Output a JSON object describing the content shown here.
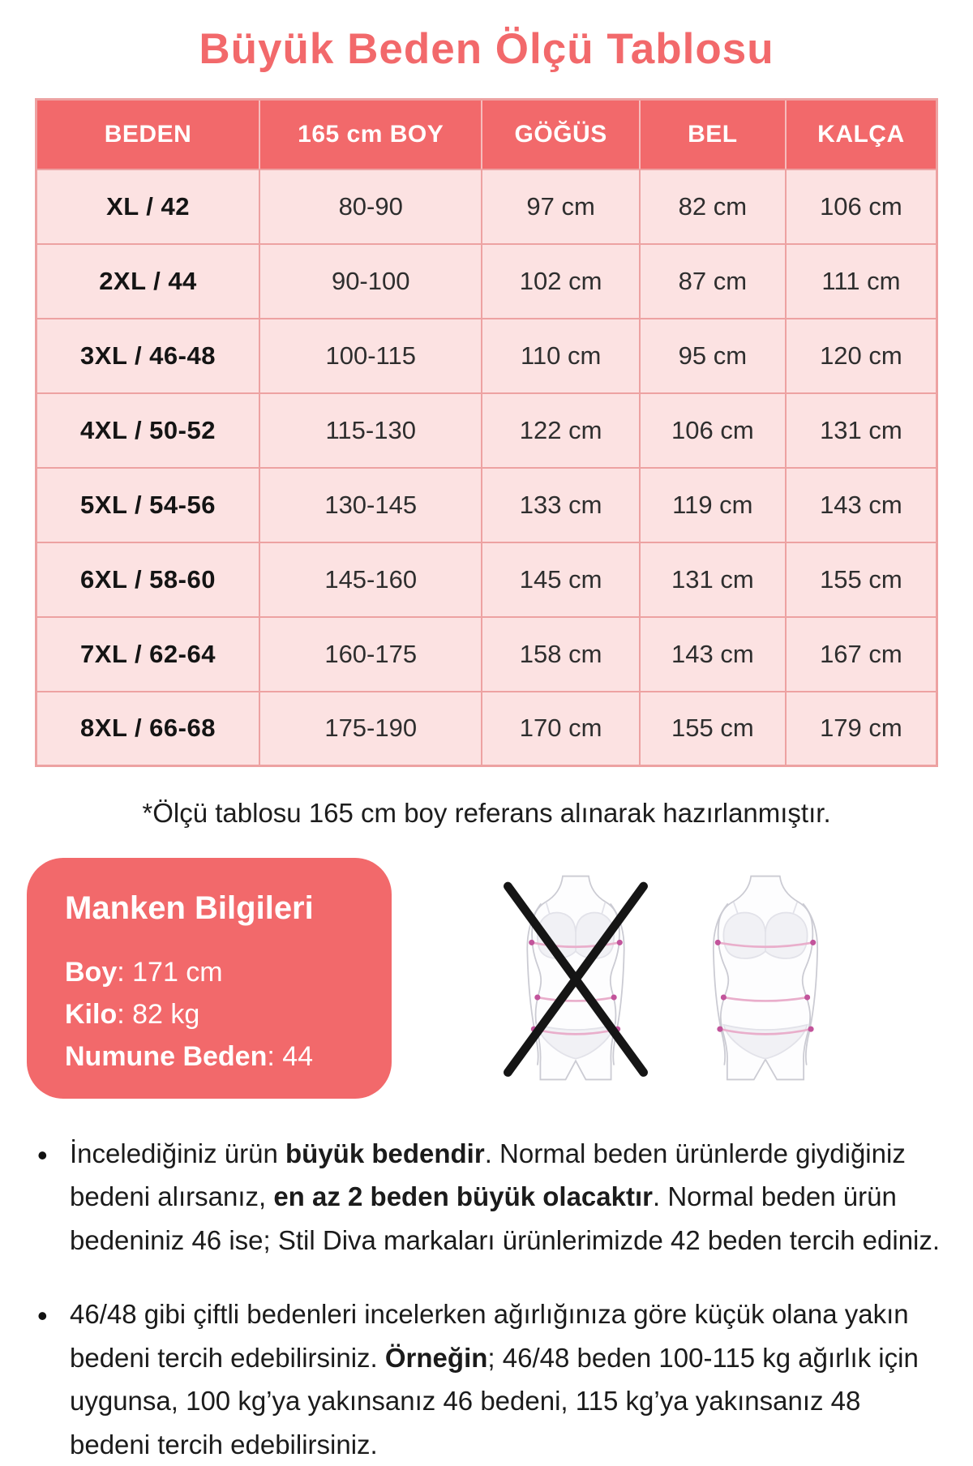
{
  "page": {
    "title": "Büyük Beden Ölçü Tablosu",
    "footnote": "*Ölçü tablosu 165 cm boy referans alınarak hazırlanmıştır."
  },
  "colors": {
    "coral": "#f2696b",
    "row_pink": "#fce2e2",
    "border_pink": "#eda2a2",
    "header_divider": "#f6bcbc",
    "measure_line": "#e9aecb",
    "measure_dot": "#c2549b",
    "cross_black": "#151515"
  },
  "size_table": {
    "headers": [
      "BEDEN",
      "165 cm BOY",
      "GÖĞÜS",
      "BEL",
      "KALÇA"
    ],
    "rows": [
      {
        "size": "XL / 42",
        "weight_range": "80-90",
        "chest": "97 cm",
        "waist": "82 cm",
        "hip": "106 cm"
      },
      {
        "size": "2XL / 44",
        "weight_range": "90-100",
        "chest": "102 cm",
        "waist": "87 cm",
        "hip": "111 cm"
      },
      {
        "size": "3XL / 46-48",
        "weight_range": "100-115",
        "chest": "110 cm",
        "waist": "95 cm",
        "hip": "120 cm"
      },
      {
        "size": "4XL / 50-52",
        "weight_range": "115-130",
        "chest": "122 cm",
        "waist": "106 cm",
        "hip": "131 cm"
      },
      {
        "size": "5XL / 54-56",
        "weight_range": "130-145",
        "chest": "133 cm",
        "waist": "119 cm",
        "hip": "143 cm"
      },
      {
        "size": "6XL / 58-60",
        "weight_range": "145-160",
        "chest": "145 cm",
        "waist": "131 cm",
        "hip": "155 cm"
      },
      {
        "size": "7XL / 62-64",
        "weight_range": "160-175",
        "chest": "158 cm",
        "waist": "143 cm",
        "hip": "167 cm"
      },
      {
        "size": "8XL / 66-68",
        "weight_range": "175-190",
        "chest": "170 cm",
        "waist": "155 cm",
        "hip": "179 cm"
      }
    ]
  },
  "model_info": {
    "title": "Manken Bilgileri",
    "fields": [
      {
        "label": "Boy",
        "value": "171 cm"
      },
      {
        "label": "Kilo",
        "value": "82 kg"
      },
      {
        "label": "Numune Beden",
        "value": "44"
      }
    ]
  },
  "illustrations": {
    "left": "slim-body-crossed-out",
    "right": "plus-size-body-with-measure-lines"
  },
  "notes": [
    {
      "segments": [
        {
          "text": "İncelediğiniz ürün "
        },
        {
          "text": "büyük bedendir",
          "bold": true
        },
        {
          "text": ". Normal beden ürünlerde giydiğiniz bedeni alırsanız, "
        },
        {
          "text": "en az 2 beden büyük olacaktır",
          "bold": true
        },
        {
          "text": ". Normal beden ürün bedeniniz 46 ise; Stil Diva markaları ürünlerimizde 42 beden tercih ediniz."
        }
      ]
    },
    {
      "segments": [
        {
          "text": "46/48 gibi çiftli bedenleri incelerken ağırlığınıza göre küçük olana yakın bedeni tercih edebilirsiniz. "
        },
        {
          "text": "Örneğin",
          "bold": true
        },
        {
          "text": "; 46/48 beden 100-115 kg ağırlık için uygunsa, 100 kg’ya yakınsanız 46 bedeni, 115 kg’ya yakınsanız 48 bedeni tercih edebilirsiniz."
        }
      ]
    }
  ]
}
